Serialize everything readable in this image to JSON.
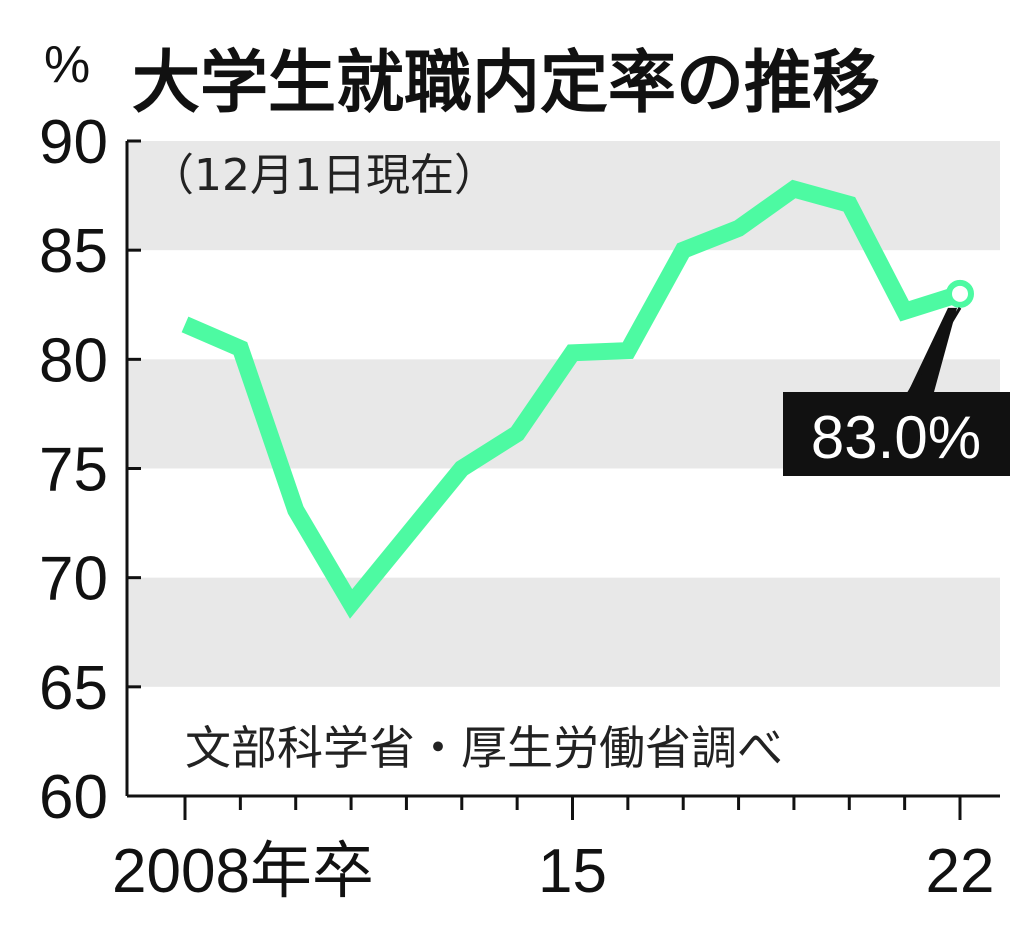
{
  "chart_data": {
    "type": "line",
    "title": "大学生就職内定率の推移",
    "subtitle": "（12月1日現在）",
    "unit": "%",
    "source": "文部科学省・厚生労働省調べ",
    "x_labels": {
      "first": "2008年卒",
      "mid": "15",
      "last": "22"
    },
    "x": [
      2008,
      2009,
      2010,
      2011,
      2012,
      2013,
      2014,
      2015,
      2016,
      2017,
      2018,
      2019,
      2020,
      2021,
      2022
    ],
    "values": [
      81.6,
      80.5,
      73.1,
      68.8,
      71.9,
      75.0,
      76.6,
      80.3,
      80.4,
      85.0,
      86.0,
      87.8,
      87.1,
      82.2,
      83.0
    ],
    "ylim": [
      60,
      90
    ],
    "yticks": [
      60,
      65,
      70,
      75,
      80,
      85,
      90
    ],
    "callout": "83.0%",
    "line_color": "#4dfaa2",
    "band_color": "#e8e8e8"
  }
}
